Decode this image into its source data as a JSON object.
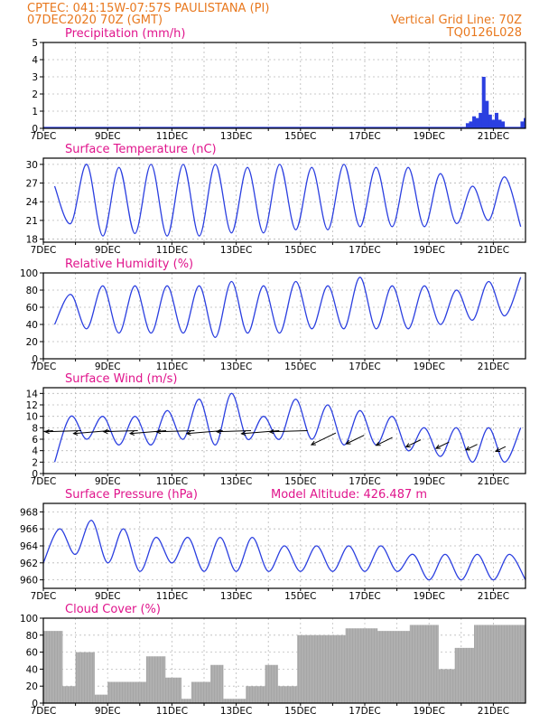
{
  "header": {
    "line1_left": "CPTEC:   041:15W-07:57S   PAULISTANA (PI)",
    "line2_left": "07DEC2020 70Z (GMT)",
    "line1_right": "Vertical Grid Line: 70Z",
    "line2_right": "TQ0126L028"
  },
  "colors": {
    "header": "#e8781e",
    "panel_title": "#e0148c",
    "series": "#2b3fe0",
    "cloud": "#a6a6a6",
    "wind_arrow": "#000000"
  },
  "x_ticks": [
    "7DEC",
    "9DEC",
    "11DEC",
    "13DEC",
    "15DEC",
    "17DEC",
    "19DEC",
    "21DEC"
  ],
  "chart_data": [
    {
      "id": "precip",
      "type": "bar",
      "title": "Precipitation (mm/h)",
      "x_range_days": [
        7,
        22
      ],
      "ylim": [
        0,
        5
      ],
      "yticks": [
        0,
        1,
        2,
        3,
        4,
        5
      ],
      "x": [
        20.2,
        20.3,
        20.4,
        20.5,
        20.6,
        20.7,
        20.8,
        20.9,
        21.0,
        21.1,
        21.2,
        21.3,
        21.9,
        22.0
      ],
      "values": [
        0.3,
        0.4,
        0.7,
        0.6,
        0.9,
        3.0,
        1.6,
        0.8,
        0.5,
        0.9,
        0.5,
        0.4,
        0.4,
        0.6
      ]
    },
    {
      "id": "temp",
      "type": "line",
      "title": "Surface Temperature (nC)",
      "x_range_days": [
        7,
        22
      ],
      "ylim": [
        17.5,
        31
      ],
      "yticks": [
        18,
        21,
        24,
        27,
        30
      ],
      "minima": [
        20.5,
        18.5,
        18.9,
        18.5,
        18.5,
        19.0,
        19.0,
        19.5,
        19.5,
        20.0,
        20.0,
        20.0,
        20.5,
        21.0,
        20.0
      ],
      "maxima": [
        26.5,
        30.0,
        29.5,
        30.0,
        30.0,
        30.0,
        29.5,
        30.0,
        29.5,
        30.0,
        29.5,
        29.5,
        28.5,
        26.5,
        28.0
      ]
    },
    {
      "id": "rh",
      "type": "line",
      "title": "Relative Humidity (%)",
      "x_range_days": [
        7,
        22
      ],
      "ylim": [
        0,
        100
      ],
      "yticks": [
        0,
        20,
        40,
        60,
        80,
        100
      ],
      "minima": [
        40,
        35,
        30,
        30,
        30,
        25,
        30,
        30,
        35,
        35,
        35,
        35,
        40,
        45,
        50
      ],
      "maxima": [
        75,
        85,
        85,
        85,
        85,
        90,
        85,
        90,
        85,
        95,
        85,
        85,
        80,
        90,
        95
      ]
    },
    {
      "id": "wind",
      "type": "line",
      "title": "Surface Wind (m/s)",
      "x_range_days": [
        7,
        22
      ],
      "ylim": [
        0,
        15
      ],
      "yticks": [
        0,
        2,
        4,
        6,
        8,
        10,
        12,
        14
      ],
      "minima": [
        2,
        6,
        5,
        5,
        6,
        5,
        6,
        6,
        6,
        5,
        5,
        4,
        3,
        2,
        2
      ],
      "maxima": [
        10,
        10,
        10,
        11,
        13,
        14,
        10,
        13,
        12,
        11,
        10,
        8,
        8,
        8,
        8
      ],
      "arrow_len": [
        42,
        40,
        40,
        38,
        40,
        42,
        40,
        38,
        42,
        42,
        30,
        22,
        20,
        18,
        16,
        14,
        12
      ]
    },
    {
      "id": "pressure",
      "type": "line",
      "title": "Surface Pressure (hPa)",
      "subtitle": "Model Altitude: 426.487  m",
      "x_range_days": [
        7,
        22
      ],
      "ylim": [
        959,
        969
      ],
      "yticks": [
        960,
        962,
        964,
        966,
        968
      ],
      "half_day_values": [
        962,
        966,
        963,
        967,
        962,
        966,
        961,
        965,
        962,
        965,
        961,
        965,
        961,
        965,
        961,
        964,
        961,
        964,
        961,
        964,
        961,
        964,
        961,
        963,
        960,
        963,
        960,
        963,
        960,
        963,
        960
      ]
    },
    {
      "id": "cloud",
      "type": "bar",
      "title": "Cloud Cover (%)",
      "x_range_days": [
        7,
        22
      ],
      "ylim": [
        0,
        100
      ],
      "yticks": [
        0,
        20,
        40,
        60,
        80,
        100
      ],
      "segments": [
        {
          "from": 7.0,
          "to": 7.6,
          "level": 85
        },
        {
          "from": 7.6,
          "to": 8.0,
          "level": 20
        },
        {
          "from": 8.0,
          "to": 8.6,
          "level": 60
        },
        {
          "from": 8.6,
          "to": 9.0,
          "level": 10
        },
        {
          "from": 9.0,
          "to": 10.2,
          "level": 25
        },
        {
          "from": 10.2,
          "to": 10.8,
          "level": 55
        },
        {
          "from": 10.8,
          "to": 11.3,
          "level": 30
        },
        {
          "from": 11.3,
          "to": 11.6,
          "level": 5
        },
        {
          "from": 11.6,
          "to": 12.2,
          "level": 25
        },
        {
          "from": 12.2,
          "to": 12.6,
          "level": 45
        },
        {
          "from": 12.6,
          "to": 13.3,
          "level": 5
        },
        {
          "from": 13.3,
          "to": 13.9,
          "level": 20
        },
        {
          "from": 13.9,
          "to": 14.3,
          "level": 45
        },
        {
          "from": 14.3,
          "to": 14.9,
          "level": 20
        },
        {
          "from": 14.9,
          "to": 16.4,
          "level": 80
        },
        {
          "from": 16.4,
          "to": 17.4,
          "level": 88
        },
        {
          "from": 17.4,
          "to": 18.4,
          "level": 85
        },
        {
          "from": 18.4,
          "to": 19.3,
          "level": 92
        },
        {
          "from": 19.3,
          "to": 19.8,
          "level": 40
        },
        {
          "from": 19.8,
          "to": 20.4,
          "level": 65
        },
        {
          "from": 20.4,
          "to": 22.0,
          "level": 92
        }
      ]
    }
  ]
}
